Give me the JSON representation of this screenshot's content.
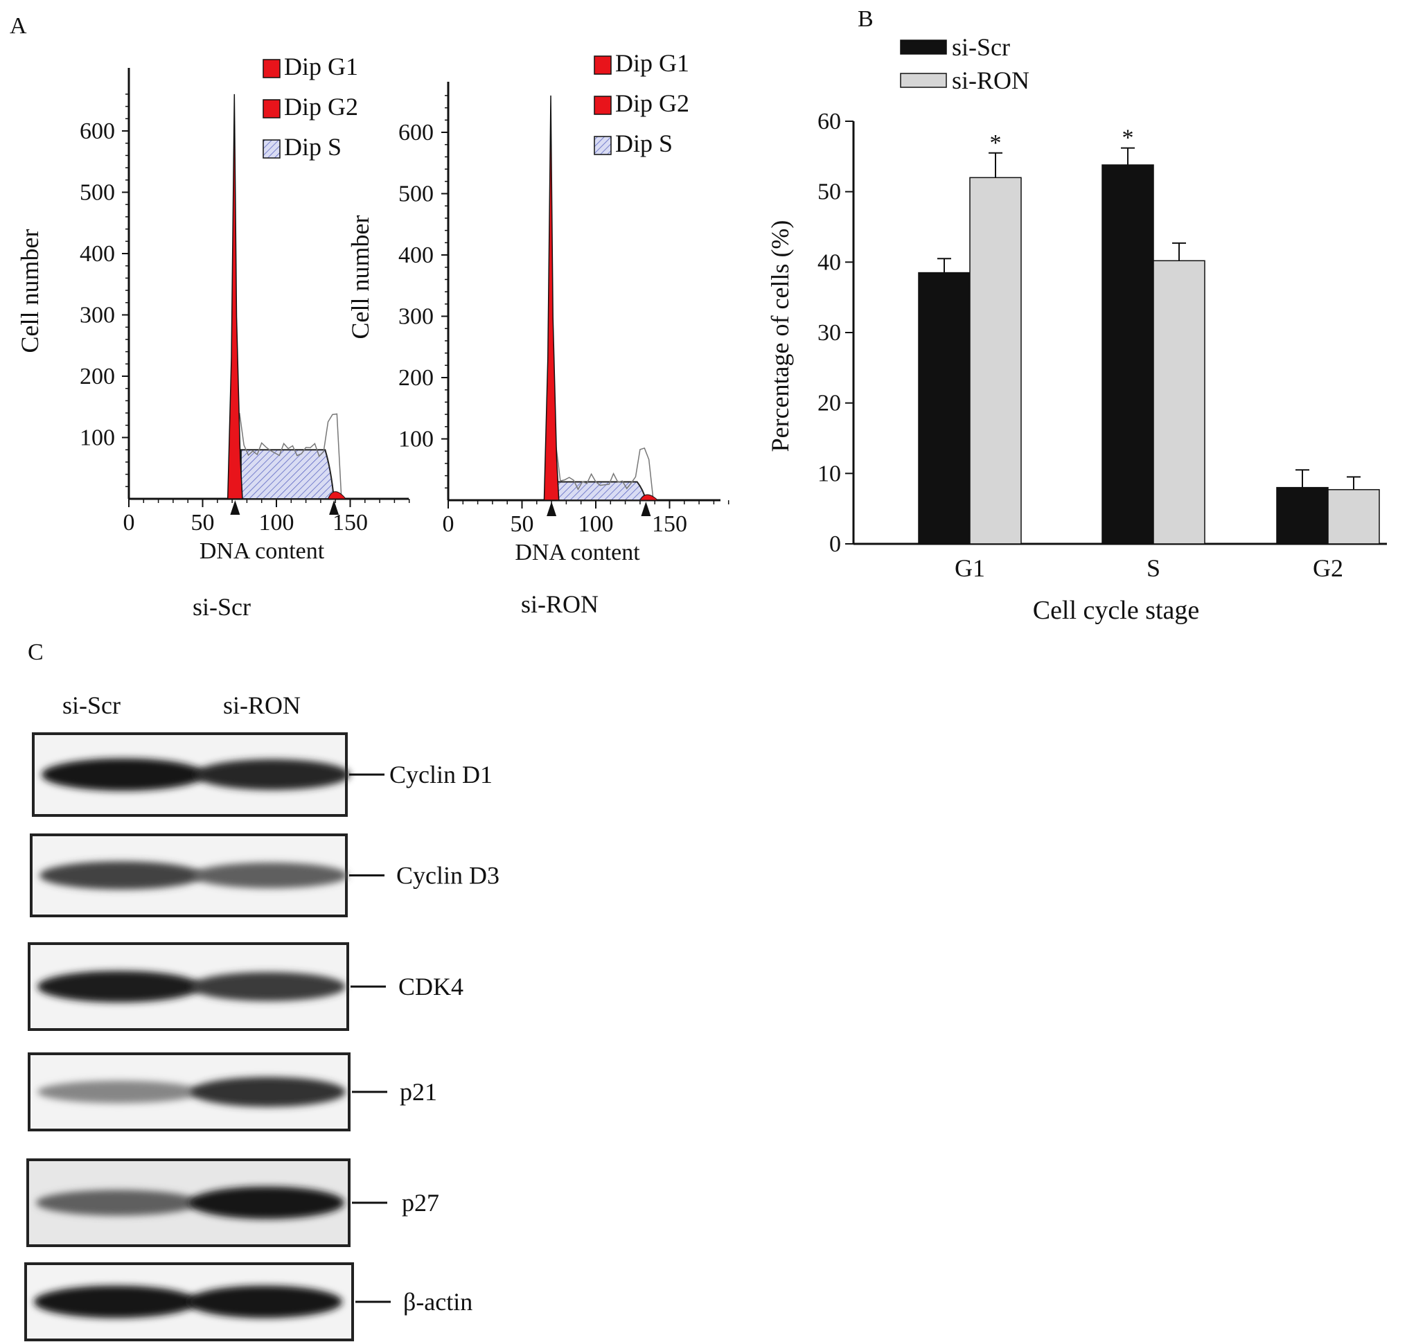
{
  "panels": {
    "a_label": "A",
    "b_label": "B",
    "c_label": "C"
  },
  "flow": {
    "legend": [
      "Dip G1",
      "Dip G2",
      "Dip S"
    ],
    "xlabel": "DNA content",
    "ylabel": "Cell number",
    "yticks": [
      100,
      200,
      300,
      400,
      500,
      600
    ],
    "xticks": [
      0,
      50,
      100,
      150
    ],
    "colors": {
      "g1": "#e8141b",
      "g2": "#e8141b",
      "s": "#b9bde6"
    },
    "hist": [
      {
        "title": "si-Scr",
        "g1_peak_x": 72,
        "g1_peak_height": 660,
        "g2_peak_x": 139,
        "g2_peak_height": 18,
        "s_plateau_height": 80,
        "arrow_x": [
          72,
          139
        ]
      },
      {
        "title": "si-RON",
        "g1_peak_x": 70,
        "g1_peak_height": 660,
        "g2_peak_x": 134,
        "g2_peak_height": 14,
        "s_plateau_height": 30,
        "arrow_x": [
          70,
          134
        ]
      }
    ]
  },
  "chart_data": {
    "type": "bar",
    "categories": [
      "G1",
      "S",
      "G2"
    ],
    "series": [
      {
        "name": "si-Scr",
        "values": [
          38.5,
          53.8,
          8.0
        ],
        "errors": [
          2.0,
          2.4,
          2.5
        ],
        "color": "#111111"
      },
      {
        "name": "si-RON",
        "values": [
          52.0,
          40.2,
          7.7
        ],
        "errors": [
          3.5,
          2.5,
          1.8
        ],
        "color": "#d6d6d6"
      }
    ],
    "significance": [
      {
        "category": "G1",
        "series": "si-RON",
        "mark": "*"
      },
      {
        "category": "S",
        "series": "si-Scr",
        "mark": "*"
      }
    ],
    "xlabel": "Cell cycle stage",
    "ylabel": "Percentage of cells (%)",
    "ylim": [
      0,
      60
    ],
    "yticks": [
      0,
      10,
      20,
      30,
      40,
      50,
      60
    ],
    "legend_position": "top-left"
  },
  "western": {
    "lanes": [
      "si-Scr",
      "si-RON"
    ],
    "proteins": [
      "Cyclin D1",
      "Cyclin D3",
      "CDK4",
      "p21",
      "p27",
      "β-actin"
    ],
    "band_intensity": [
      [
        0.95,
        0.85
      ],
      [
        0.7,
        0.55
      ],
      [
        0.9,
        0.75
      ],
      [
        0.35,
        0.8
      ],
      [
        0.55,
        0.95
      ],
      [
        0.95,
        0.95
      ]
    ]
  }
}
